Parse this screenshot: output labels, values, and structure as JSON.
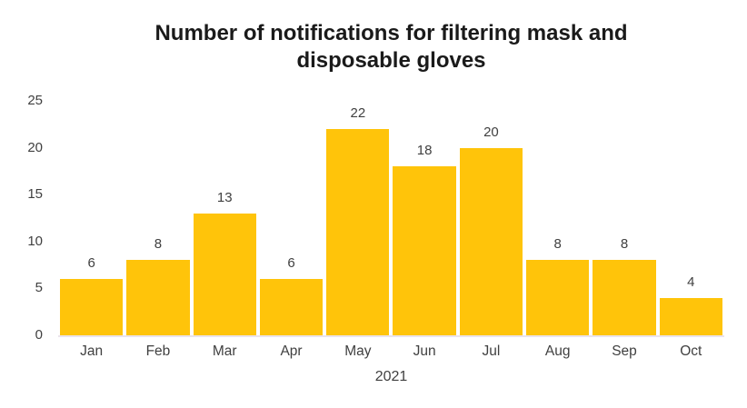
{
  "chart": {
    "title_lines": [
      "Number of notifications for filtering mask and",
      "disposable gloves"
    ],
    "xlabel": "2021"
  },
  "colors": {
    "bar": "#FFC40A",
    "axis_line": "#EAE4EC",
    "tick_text": "#404040",
    "title_text": "#1A1A1A",
    "background": "#FFFFFF"
  },
  "chart_data": {
    "type": "bar",
    "title": "Number of notifications for filtering mask and disposable gloves",
    "categories": [
      "Jan",
      "Feb",
      "Mar",
      "Apr",
      "May",
      "Jun",
      "Jul",
      "Aug",
      "Sep",
      "Oct"
    ],
    "values": [
      6,
      8,
      13,
      6,
      22,
      18,
      20,
      8,
      8,
      4
    ],
    "xlabel": "2021",
    "ylabel": "",
    "ylim": [
      0,
      25
    ],
    "yticks": [
      0,
      5,
      10,
      15,
      20,
      25
    ],
    "grid": false,
    "legend": false,
    "data_labels": true,
    "bar_color": "#FFC40A"
  }
}
